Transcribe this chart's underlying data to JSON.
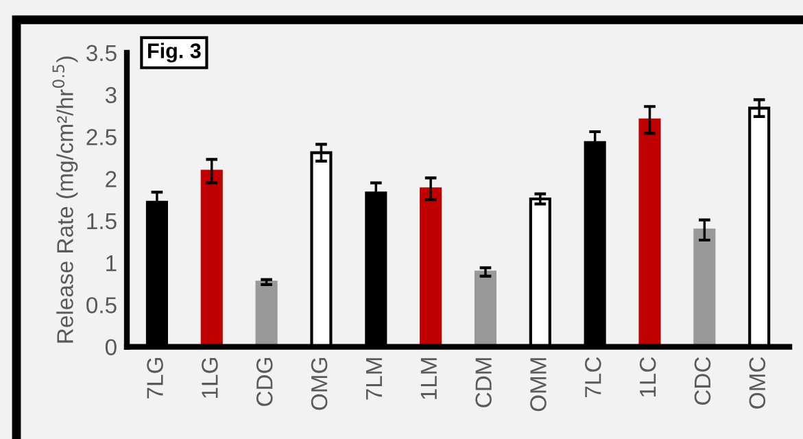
{
  "chart_data": {
    "type": "bar",
    "ylabel": "Release Rate (mg/cm²/hr$^{0.5}$)",
    "annotations": [
      "Fig. 3"
    ],
    "categories": [
      "7LG",
      "1LG",
      "CDG",
      "OMG",
      "7LM",
      "1LM",
      "CDM",
      "OMM",
      "7LC",
      "1LC",
      "CDC",
      "OMC"
    ],
    "values": [
      1.72,
      2.09,
      0.77,
      2.31,
      1.83,
      1.88,
      0.89,
      1.76,
      2.43,
      2.7,
      1.39,
      2.84
    ],
    "errors": [
      0.12,
      0.14,
      0.03,
      0.1,
      0.12,
      0.13,
      0.05,
      0.06,
      0.13,
      0.16,
      0.12,
      0.1
    ],
    "colors": [
      "#000000",
      "#c00000",
      "#999999",
      "#ffffff",
      "#000000",
      "#c00000",
      "#999999",
      "#ffffff",
      "#000000",
      "#c00000",
      "#999999",
      "#ffffff"
    ],
    "ylim": [
      0,
      3.5
    ],
    "yticks": [
      0,
      0.5,
      1,
      1.5,
      2,
      2.5,
      3,
      3.5
    ],
    "grid": false
  }
}
